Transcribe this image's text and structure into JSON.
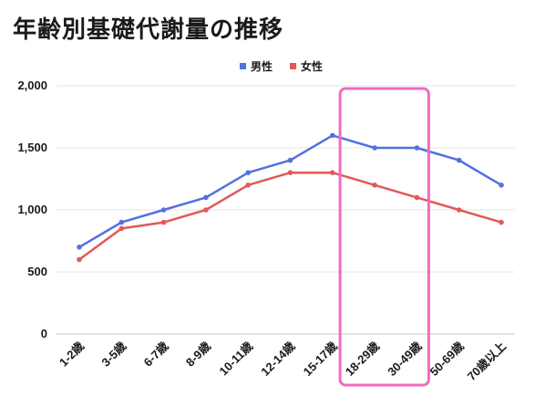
{
  "chart_data": {
    "type": "line",
    "title": "年齢別基礎代謝量の推移",
    "categories": [
      "1-2歳",
      "3-5歳",
      "6-7歳",
      "8-9歳",
      "10-11歳",
      "12-14歳",
      "15-17歳",
      "18-29歳",
      "30-49歳",
      "50-69歳",
      "70歳以上"
    ],
    "series": [
      {
        "name": "男性",
        "color": "#5470e0",
        "values": [
          700,
          900,
          1000,
          1100,
          1300,
          1400,
          1600,
          1500,
          1500,
          1400,
          1200
        ]
      },
      {
        "name": "女性",
        "color": "#e05a5a",
        "values": [
          600,
          850,
          900,
          1000,
          1200,
          1300,
          1300,
          1200,
          1100,
          1000,
          900
        ]
      }
    ],
    "ylim": [
      0,
      2000
    ],
    "yticks": [
      "0",
      "500",
      "1,000",
      "1,500",
      "2,000"
    ],
    "legend_position": "top-center",
    "grid": true,
    "highlight": {
      "categories": [
        "18-29歳",
        "30-49歳"
      ],
      "color": "#f06bc0"
    }
  }
}
